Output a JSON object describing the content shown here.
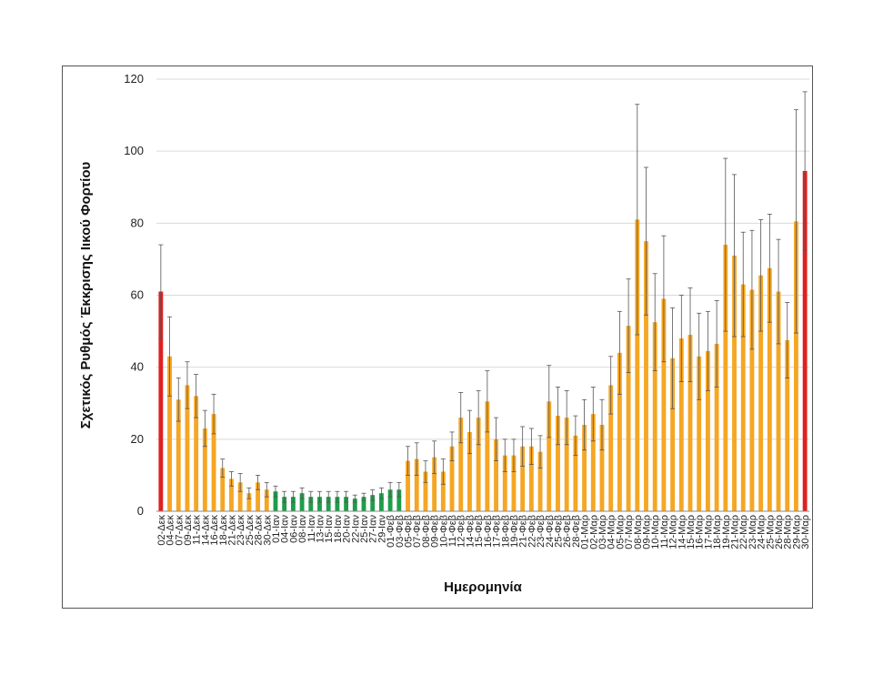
{
  "chart_data": {
    "type": "bar",
    "xlabel": "Ημερομηνία",
    "ylabel": "Σχετικός Ρυθμός Έκκρισης Ιικού Φορτίου",
    "ylim": [
      0,
      120
    ],
    "yticks": [
      0,
      20,
      40,
      60,
      80,
      100,
      120
    ],
    "grid": true,
    "colors": {
      "orange": "#f5a623",
      "green": "#1e9e4a",
      "red": "#e02020",
      "error": "#555555"
    },
    "categories": [
      "02-Δεκ",
      "04-Δεκ",
      "07-Δεκ",
      "09-Δεκ",
      "11-Δεκ",
      "14-Δεκ",
      "16-Δεκ",
      "18-Δεκ",
      "21-Δεκ",
      "23-Δεκ",
      "25-Δεκ",
      "28-Δεκ",
      "30-Δεκ",
      "01-Ιαν",
      "04-Ιαν",
      "06-Ιαν",
      "08-Ιαν",
      "11-Ιαν",
      "13-Ιαν",
      "15-Ιαν",
      "18-Ιαν",
      "20-Ιαν",
      "22-Ιαν",
      "25-Ιαν",
      "27-Ιαν",
      "29-Ιαν",
      "01-Φεβ",
      "03-Φεβ",
      "05-Φεβ",
      "07-Φεβ",
      "08-Φεβ",
      "09-Φεβ",
      "10-Φεβ",
      "11-Φεβ",
      "12-Φεβ",
      "14-Φεβ",
      "15-Φεβ",
      "16-Φεβ",
      "17-Φεβ",
      "18-Φεβ",
      "19-Φεβ",
      "21-Φεβ",
      "22-Φεβ",
      "23-Φεβ",
      "24-Φεβ",
      "25-Φεβ",
      "26-Φεβ",
      "28-Φεβ",
      "01-Μαρ",
      "02-Μαρ",
      "03-Μαρ",
      "04-Μαρ",
      "05-Μαρ",
      "07-Μαρ",
      "08-Μαρ",
      "09-Μαρ",
      "10-Μαρ",
      "11-Μαρ",
      "12-Μαρ",
      "14-Μαρ",
      "15-Μαρ",
      "16-Μαρ",
      "17-Μαρ",
      "18-Μαρ",
      "19-Μαρ",
      "21-Μαρ",
      "22-Μαρ",
      "23-Μαρ",
      "24-Μαρ",
      "25-Μαρ",
      "26-Μαρ",
      "28-Μαρ",
      "29-Μαρ",
      "30-Μαρ"
    ],
    "values": [
      61,
      43,
      31,
      35,
      32,
      23,
      27,
      12,
      9,
      8,
      5,
      8,
      6,
      5.5,
      4,
      4,
      5,
      4,
      4,
      4,
      4,
      4,
      3.5,
      4,
      4.5,
      5,
      6,
      6,
      14,
      14.5,
      11,
      15,
      11,
      18,
      26,
      22,
      26,
      30.5,
      20,
      15.5,
      15.5,
      18,
      18,
      16.5,
      30.5,
      26.5,
      26,
      21,
      24,
      27,
      24,
      35,
      44,
      51.5,
      81,
      75,
      52.5,
      59,
      42.5,
      48,
      49,
      43,
      44.5,
      46.5,
      74,
      71,
      63,
      61.5,
      65.5,
      67.5,
      61,
      47.5,
      80.5,
      94.5
    ],
    "errors": [
      13,
      11,
      6,
      6.5,
      6,
      5,
      5.5,
      2.5,
      2,
      2.5,
      1.5,
      2,
      2,
      1.5,
      1.5,
      1.5,
      1.5,
      1.5,
      1.5,
      1.5,
      1.5,
      1.5,
      1,
      1,
      1.5,
      1.5,
      2,
      2,
      4,
      4.5,
      3,
      4.5,
      3.5,
      4,
      7,
      6,
      7.5,
      8.5,
      6,
      4.5,
      4.5,
      5.5,
      5,
      4.5,
      10,
      8,
      7.5,
      5.5,
      7,
      7.5,
      7,
      8,
      11.5,
      13,
      32,
      20.5,
      13.5,
      17.5,
      14,
      12,
      13,
      12,
      11,
      12,
      24,
      22.5,
      14.5,
      16.5,
      15.5,
      15,
      14.5,
      10.5,
      31,
      22
    ],
    "bar_colors": [
      "red",
      "orange",
      "orange",
      "orange",
      "orange",
      "orange",
      "orange",
      "orange",
      "orange",
      "orange",
      "orange",
      "orange",
      "orange",
      "green",
      "green",
      "green",
      "green",
      "green",
      "green",
      "green",
      "green",
      "green",
      "green",
      "green",
      "green",
      "green",
      "green",
      "green",
      "orange",
      "orange",
      "orange",
      "orange",
      "orange",
      "orange",
      "orange",
      "orange",
      "orange",
      "orange",
      "orange",
      "orange",
      "orange",
      "orange",
      "orange",
      "orange",
      "orange",
      "orange",
      "orange",
      "orange",
      "orange",
      "orange",
      "orange",
      "orange",
      "orange",
      "orange",
      "orange",
      "orange",
      "orange",
      "orange",
      "orange",
      "orange",
      "orange",
      "orange",
      "orange",
      "orange",
      "orange",
      "orange",
      "orange",
      "orange",
      "orange",
      "orange",
      "orange",
      "orange",
      "orange",
      "red"
    ]
  }
}
